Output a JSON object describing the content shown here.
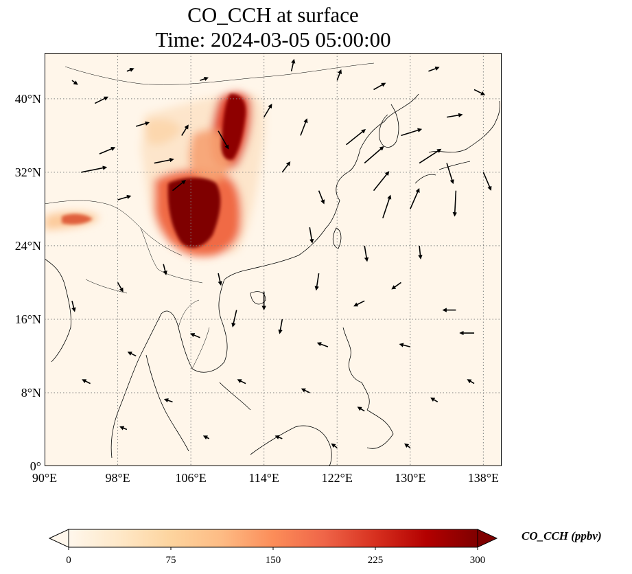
{
  "title": {
    "line1": "CO_CCH at surface",
    "line2": "Time: 2024-03-05 05:00:00"
  },
  "map": {
    "extent": {
      "lon": [
        90,
        140
      ],
      "lat": [
        0,
        45
      ]
    },
    "gridlines": {
      "style": "dotted",
      "color": "#7f7f7f"
    },
    "lat_ticks": [
      {
        "value": 0,
        "label": "0°"
      },
      {
        "value": 8,
        "label": "8°N"
      },
      {
        "value": 16,
        "label": "16°N"
      },
      {
        "value": 24,
        "label": "24°N"
      },
      {
        "value": 32,
        "label": "32°N"
      },
      {
        "value": 40,
        "label": "40°N"
      }
    ],
    "lon_ticks": [
      {
        "value": 90,
        "label": "90°E"
      },
      {
        "value": 98,
        "label": "98°E"
      },
      {
        "value": 106,
        "label": "106°E"
      },
      {
        "value": 114,
        "label": "114°E"
      },
      {
        "value": 122,
        "label": "122°E"
      },
      {
        "value": 130,
        "label": "130°E"
      },
      {
        "value": 138,
        "label": "138°E"
      }
    ],
    "background_color": "#fff6ea",
    "coastline_color": "#000000"
  },
  "colorbar": {
    "label": "CO_CCH (ppbv)",
    "colormap": "OrRd",
    "min": 0,
    "max": 300,
    "extend": "both",
    "ticks": [
      {
        "value": 0,
        "label": "0"
      },
      {
        "value": 75,
        "label": "75"
      },
      {
        "value": 150,
        "label": "150"
      },
      {
        "value": 225,
        "label": "225"
      },
      {
        "value": 300,
        "label": "300"
      }
    ],
    "colors": [
      "#fff7ec",
      "#fee8c8",
      "#fdd49e",
      "#fdbb84",
      "#fc8d59",
      "#ef6548",
      "#d7301f",
      "#b30000",
      "#7f0000"
    ]
  },
  "chart_data": {
    "type": "heatmap",
    "title": "CO_CCH at surface\nTime: 2024-03-05 05:00:00",
    "xlim": [
      90,
      140
    ],
    "ylim": [
      0,
      45
    ],
    "concentration_field_ppbv": [
      {
        "lon": 108.0,
        "lat": 28.5,
        "value": 300
      },
      {
        "lon": 106.5,
        "lat": 27.5,
        "value": 300
      },
      {
        "lon": 107.0,
        "lat": 26.0,
        "value": 280
      },
      {
        "lon": 109.5,
        "lat": 27.5,
        "value": 220
      },
      {
        "lon": 110.5,
        "lat": 25.0,
        "value": 200
      },
      {
        "lon": 110.5,
        "lat": 38.5,
        "value": 300
      },
      {
        "lon": 111.0,
        "lat": 36.5,
        "value": 270
      },
      {
        "lon": 110.0,
        "lat": 34.5,
        "value": 220
      },
      {
        "lon": 108.5,
        "lat": 32.0,
        "value": 200
      },
      {
        "lon": 106.0,
        "lat": 33.5,
        "value": 120
      },
      {
        "lon": 104.5,
        "lat": 35.5,
        "value": 80
      },
      {
        "lon": 103.0,
        "lat": 37.5,
        "value": 70
      },
      {
        "lon": 92.5,
        "lat": 26.5,
        "value": 140
      },
      {
        "lon": 90.5,
        "lat": 26.0,
        "value": 90
      },
      {
        "lon": 94.0,
        "lat": 27.0,
        "value": 90
      },
      {
        "lon": 100.5,
        "lat": 39.5,
        "value": 90
      },
      {
        "lon": 98.0,
        "lat": 31.0,
        "value": 40
      },
      {
        "lon": 114.5,
        "lat": 36.0,
        "value": 30
      }
    ],
    "wind_vectors": [
      {
        "lon": 95.5,
        "lat": 39.5,
        "u": 1,
        "v": 0.5
      },
      {
        "lon": 100,
        "lat": 37,
        "u": 1,
        "v": 0.3
      },
      {
        "lon": 102,
        "lat": 33,
        "u": 1.5,
        "v": 0.3
      },
      {
        "lon": 94,
        "lat": 32,
        "u": 2,
        "v": 0.4
      },
      {
        "lon": 96,
        "lat": 34,
        "u": 1.2,
        "v": 0.5
      },
      {
        "lon": 98,
        "lat": 29,
        "u": 1,
        "v": 0.3
      },
      {
        "lon": 104,
        "lat": 30,
        "u": 1,
        "v": 0.8
      },
      {
        "lon": 109,
        "lat": 36.5,
        "u": 0.8,
        "v": -1.4
      },
      {
        "lon": 105,
        "lat": 36,
        "u": 0.5,
        "v": 0.8
      },
      {
        "lon": 114,
        "lat": 38,
        "u": 0.6,
        "v": 1
      },
      {
        "lon": 118,
        "lat": 36,
        "u": 0.5,
        "v": 1.3
      },
      {
        "lon": 116,
        "lat": 32,
        "u": 0.6,
        "v": 0.8
      },
      {
        "lon": 120,
        "lat": 30,
        "u": 0.4,
        "v": -1
      },
      {
        "lon": 119,
        "lat": 26,
        "u": 0.2,
        "v": -1.2
      },
      {
        "lon": 123,
        "lat": 35,
        "u": 1.5,
        "v": 1.2
      },
      {
        "lon": 125,
        "lat": 33,
        "u": 1.5,
        "v": 1.3
      },
      {
        "lon": 126,
        "lat": 30,
        "u": 1.2,
        "v": 1.5
      },
      {
        "lon": 127,
        "lat": 27,
        "u": 0.6,
        "v": 1.8
      },
      {
        "lon": 130,
        "lat": 28,
        "u": 0.7,
        "v": 1.6
      },
      {
        "lon": 129,
        "lat": 36,
        "u": 1.6,
        "v": 0.5
      },
      {
        "lon": 131,
        "lat": 33,
        "u": 1.7,
        "v": 1.1
      },
      {
        "lon": 134,
        "lat": 33,
        "u": 0.5,
        "v": -1.6
      },
      {
        "lon": 135,
        "lat": 30,
        "u": -0.1,
        "v": -2
      },
      {
        "lon": 138,
        "lat": 32,
        "u": 0.6,
        "v": -1.4
      },
      {
        "lon": 131,
        "lat": 24,
        "u": 0.1,
        "v": -1
      },
      {
        "lon": 125,
        "lat": 24,
        "u": 0.2,
        "v": -1.2
      },
      {
        "lon": 120,
        "lat": 21,
        "u": -0.2,
        "v": -1.3
      },
      {
        "lon": 114,
        "lat": 19,
        "u": 0,
        "v": -1.4
      },
      {
        "lon": 111,
        "lat": 17,
        "u": -0.3,
        "v": -1.3
      },
      {
        "lon": 116,
        "lat": 16,
        "u": -0.2,
        "v": -1.1
      },
      {
        "lon": 125,
        "lat": 18,
        "u": -0.8,
        "v": -0.4
      },
      {
        "lon": 129,
        "lat": 20,
        "u": -0.7,
        "v": -0.5
      },
      {
        "lon": 135,
        "lat": 17,
        "u": -1,
        "v": 0
      },
      {
        "lon": 137,
        "lat": 14.5,
        "u": -1.1,
        "v": 0
      },
      {
        "lon": 130,
        "lat": 13,
        "u": -0.8,
        "v": 0.2
      },
      {
        "lon": 121,
        "lat": 13,
        "u": -0.8,
        "v": 0.3
      },
      {
        "lon": 107,
        "lat": 14,
        "u": -0.7,
        "v": 0.3
      },
      {
        "lon": 100,
        "lat": 12,
        "u": -0.6,
        "v": 0.3
      },
      {
        "lon": 95,
        "lat": 9,
        "u": -0.6,
        "v": 0.3
      },
      {
        "lon": 104,
        "lat": 7,
        "u": -0.6,
        "v": 0.2
      },
      {
        "lon": 112,
        "lat": 9,
        "u": -0.6,
        "v": 0.3
      },
      {
        "lon": 119,
        "lat": 8,
        "u": -0.6,
        "v": 0.3
      },
      {
        "lon": 125,
        "lat": 6,
        "u": -0.5,
        "v": 0.3
      },
      {
        "lon": 133,
        "lat": 7,
        "u": -0.5,
        "v": 0.3
      },
      {
        "lon": 137,
        "lat": 9,
        "u": -0.5,
        "v": 0.3
      },
      {
        "lon": 99,
        "lat": 4,
        "u": -0.5,
        "v": 0.2
      },
      {
        "lon": 108,
        "lat": 3,
        "u": -0.4,
        "v": 0.2
      },
      {
        "lon": 116,
        "lat": 3,
        "u": -0.5,
        "v": 0.2
      },
      {
        "lon": 122,
        "lat": 2,
        "u": -0.4,
        "v": 0.3
      },
      {
        "lon": 130,
        "lat": 2,
        "u": -0.4,
        "v": 0.3
      },
      {
        "lon": 93,
        "lat": 18,
        "u": 0.2,
        "v": -0.8
      },
      {
        "lon": 98,
        "lat": 20,
        "u": 0.4,
        "v": -0.7
      },
      {
        "lon": 103,
        "lat": 22,
        "u": 0.2,
        "v": -0.8
      },
      {
        "lon": 109,
        "lat": 21,
        "u": 0.2,
        "v": -0.9
      },
      {
        "lon": 134,
        "lat": 38,
        "u": 1.2,
        "v": 0.2
      },
      {
        "lon": 137,
        "lat": 41,
        "u": 0.8,
        "v": -0.4
      },
      {
        "lon": 126,
        "lat": 41,
        "u": 0.9,
        "v": 0.5
      },
      {
        "lon": 122,
        "lat": 42,
        "u": 0.3,
        "v": 0.8
      },
      {
        "lon": 132,
        "lat": 43,
        "u": 0.8,
        "v": 0.3
      },
      {
        "lon": 117,
        "lat": 43,
        "u": 0.2,
        "v": 0.9
      },
      {
        "lon": 107,
        "lat": 42,
        "u": 0.6,
        "v": 0.2
      },
      {
        "lon": 99,
        "lat": 43,
        "u": 0.5,
        "v": 0.2
      },
      {
        "lon": 93,
        "lat": 42,
        "u": 0.4,
        "v": -0.3
      }
    ]
  }
}
